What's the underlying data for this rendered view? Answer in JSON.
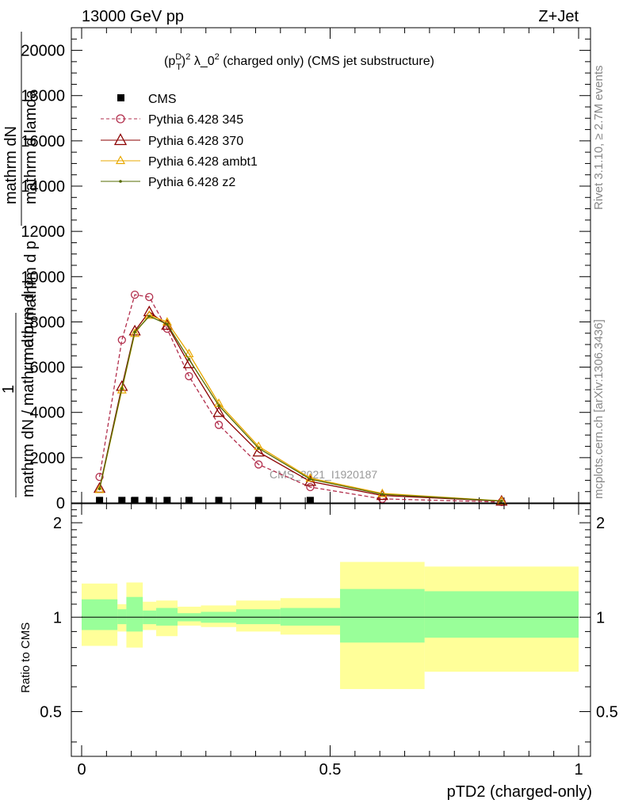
{
  "header": {
    "energy_label": "13000 GeV pp",
    "process_label": "Z+Jet"
  },
  "side": {
    "rivet_label": "Rivet 3.1.10, ≥ 2.7M events",
    "mcplots_label": "mcplots.cern.ch [arXiv:1306.3436]"
  },
  "chart_data": [
    {
      "type": "line",
      "title": "(p_T^D)^2 λ_0^2 (charged only) (CMS jet substructure)",
      "title_parts": {
        "pre": "(p",
        "sup_D": "D",
        "sub_T": "T",
        "post1": ")",
        "sup_2a": "2",
        "mid": " λ_0",
        "sup_2b": "2",
        "tail": " (charged only) (CMS jet substructure)"
      },
      "ylabel_fragments": [
        "mathrm dN",
        "mathrm d p",
        "mathrm d lamda",
        "1",
        "mathrm dN / mathrm d p",
        "mathrm d p"
      ],
      "watermark": "CMS_2021_I1920187",
      "xlim": [
        0,
        1
      ],
      "ylim": [
        0,
        21000
      ],
      "yticks": [
        0,
        2000,
        4000,
        6000,
        8000,
        10000,
        12000,
        14000,
        16000,
        18000,
        20000
      ],
      "ytick_labels": [
        "0",
        "2000",
        "4000",
        "6000",
        "8000",
        "10000",
        "12000",
        "14000",
        "16000",
        "18000",
        "20000"
      ],
      "legend": {
        "placement": "top-left"
      },
      "cms": {
        "name": "CMS",
        "x": [
          0.036,
          0.081,
          0.107,
          0.136,
          0.172,
          0.216,
          0.276,
          0.356,
          0.46
        ],
        "y": [
          5,
          5,
          5,
          5,
          5,
          5,
          5,
          5,
          5
        ]
      },
      "series": [
        {
          "name": "Pythia 6.428 345",
          "color": "#b22e4c",
          "marker": "open-circle",
          "dashed": true,
          "x": [
            0.036,
            0.081,
            0.107,
            0.136,
            0.172,
            0.216,
            0.276,
            0.356,
            0.46,
            0.605,
            0.845
          ],
          "y": [
            1150,
            7200,
            9200,
            9100,
            7700,
            5600,
            3450,
            1700,
            700,
            180,
            40
          ]
        },
        {
          "name": "Pythia 6.428 370",
          "color": "#8b0000",
          "marker": "open-triangle",
          "dashed": false,
          "x": [
            0.036,
            0.081,
            0.107,
            0.136,
            0.172,
            0.216,
            0.276,
            0.356,
            0.46,
            0.605,
            0.845
          ],
          "y": [
            650,
            5150,
            7600,
            8450,
            7850,
            6150,
            4000,
            2250,
            950,
            330,
            80
          ]
        },
        {
          "name": "Pythia 6.428 ambt1",
          "color": "#e8a800",
          "marker": "open-triangle-small",
          "dashed": false,
          "x": [
            0.036,
            0.081,
            0.107,
            0.136,
            0.172,
            0.216,
            0.276,
            0.356,
            0.46,
            0.605,
            0.845
          ],
          "y": [
            600,
            5000,
            7500,
            8300,
            8000,
            6600,
            4400,
            2500,
            1100,
            420,
            90
          ]
        },
        {
          "name": "Pythia 6.428 z2",
          "color": "#556b00",
          "marker": "dot",
          "dashed": false,
          "x": [
            0.036,
            0.081,
            0.107,
            0.136,
            0.172,
            0.216,
            0.276,
            0.356,
            0.46,
            0.605,
            0.845
          ],
          "y": [
            620,
            5050,
            7550,
            8250,
            7900,
            6350,
            4300,
            2420,
            1050,
            380,
            85
          ]
        }
      ]
    },
    {
      "type": "area",
      "ylabel": "Ratio to CMS",
      "xlabel": "pTD2 (charged-only)",
      "xlim": [
        0,
        1
      ],
      "ylim": [
        0.36,
        2.3
      ],
      "log_scale": true,
      "ytick_labels": [
        {
          "v": 0.5,
          "label": "0.5"
        },
        {
          "v": 1,
          "label": "1"
        },
        {
          "v": 2,
          "label": "2"
        }
      ],
      "xtick_labels": [
        {
          "v": 0,
          "label": "0"
        },
        {
          "v": 0.5,
          "label": "0.5"
        },
        {
          "v": 1,
          "label": "1"
        }
      ],
      "band_colors": {
        "outer": "#ffff99",
        "inner": "#99ff99"
      },
      "bins": [
        {
          "x0": 0.0,
          "x1": 0.072,
          "outer": [
            0.81,
            1.28
          ],
          "inner": [
            0.91,
            1.14
          ]
        },
        {
          "x0": 0.072,
          "x1": 0.09,
          "outer": [
            0.9,
            1.1
          ],
          "inner": [
            0.95,
            1.06
          ]
        },
        {
          "x0": 0.09,
          "x1": 0.123,
          "outer": [
            0.8,
            1.29
          ],
          "inner": [
            0.9,
            1.16
          ]
        },
        {
          "x0": 0.123,
          "x1": 0.15,
          "outer": [
            0.91,
            1.12
          ],
          "inner": [
            0.95,
            1.05
          ]
        },
        {
          "x0": 0.15,
          "x1": 0.193,
          "outer": [
            0.87,
            1.13
          ],
          "inner": [
            0.94,
            1.07
          ]
        },
        {
          "x0": 0.193,
          "x1": 0.24,
          "outer": [
            0.94,
            1.08
          ],
          "inner": [
            0.97,
            1.03
          ]
        },
        {
          "x0": 0.24,
          "x1": 0.311,
          "outer": [
            0.93,
            1.09
          ],
          "inner": [
            0.96,
            1.04
          ]
        },
        {
          "x0": 0.311,
          "x1": 0.4,
          "outer": [
            0.9,
            1.13
          ],
          "inner": [
            0.95,
            1.06
          ]
        },
        {
          "x0": 0.4,
          "x1": 0.52,
          "outer": [
            0.88,
            1.15
          ],
          "inner": [
            0.94,
            1.07
          ]
        },
        {
          "x0": 0.52,
          "x1": 0.69,
          "outer": [
            0.59,
            1.5
          ],
          "inner": [
            0.83,
            1.23
          ]
        },
        {
          "x0": 0.69,
          "x1": 1.0,
          "outer": [
            0.67,
            1.45
          ],
          "inner": [
            0.86,
            1.21
          ]
        }
      ]
    }
  ]
}
